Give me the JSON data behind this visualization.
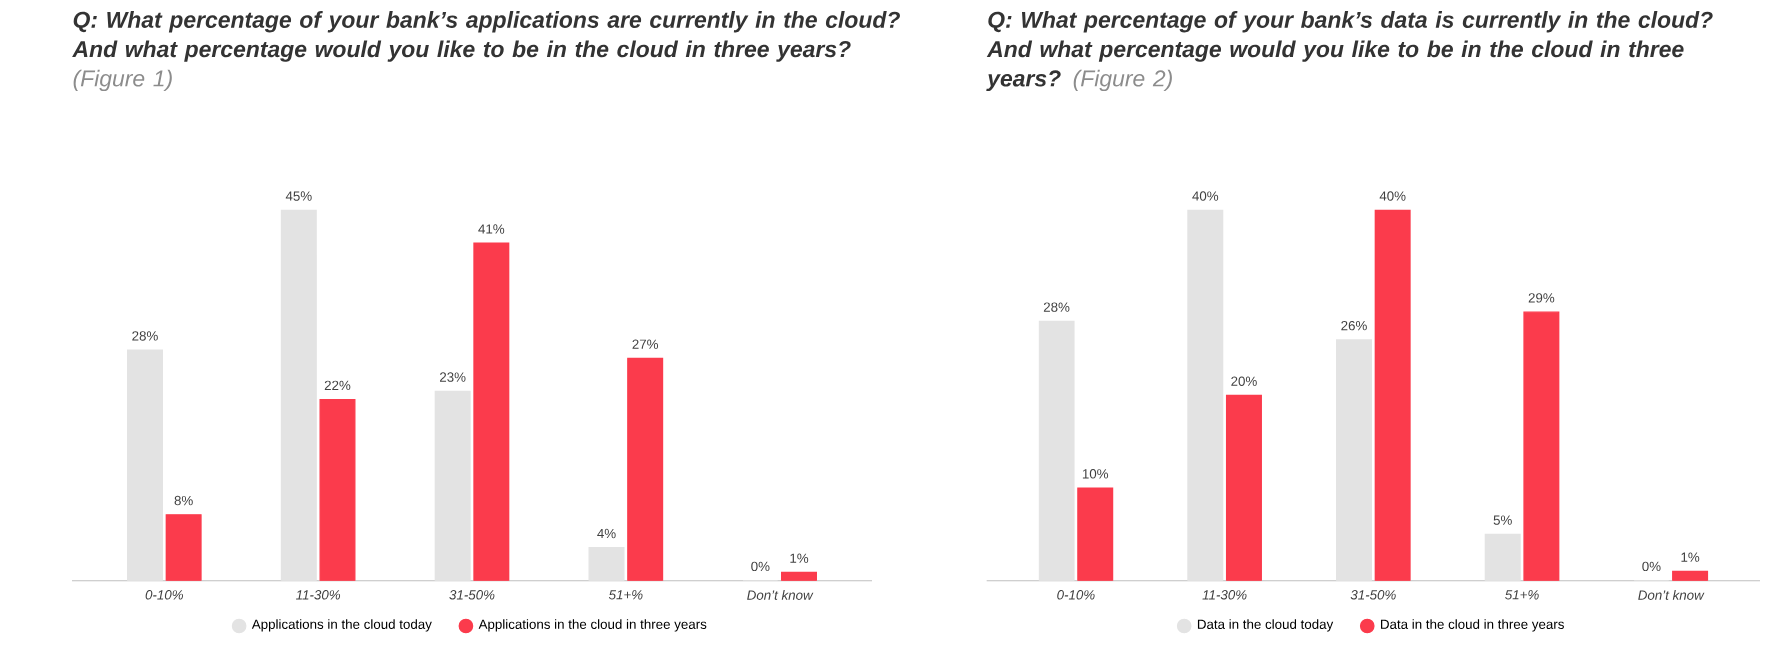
{
  "chart_data": [
    {
      "type": "bar",
      "title": "Q: What percentage of your bank’s applications are currently in the cloud? And what percentage would you like to be in the cloud in three years?",
      "subtitle": "(Figure 1)",
      "categories": [
        "0-10%",
        "11-30%",
        "31-50%",
        "51+%",
        "Don’t know"
      ],
      "series": [
        {
          "name": "Applications in the cloud today",
          "color": "#e3e3e3",
          "values": [
            28,
            45,
            23,
            4,
            0
          ],
          "value_labels": [
            "28%",
            "45%",
            "23%",
            "4%",
            "0%"
          ]
        },
        {
          "name": "Applications in the cloud in three years",
          "color": "#fb3b4c",
          "values": [
            8,
            22,
            41,
            27,
            1
          ],
          "value_labels": [
            "8%",
            "22%",
            "41%",
            "27%",
            "1%"
          ]
        }
      ],
      "legend": "bottom"
    },
    {
      "type": "bar",
      "title": "Q: What percentage of your bank’s data is currently in the cloud? And what percentage would you like to be in the cloud in three years?",
      "subtitle": "(Figure 2)",
      "categories": [
        "0-10%",
        "11-30%",
        "31-50%",
        "51+%",
        "Don’t know"
      ],
      "series": [
        {
          "name": "Data in the cloud today",
          "color": "#e3e3e3",
          "values": [
            28,
            40,
            26,
            5,
            0
          ],
          "value_labels": [
            "28%",
            "40%",
            "26%",
            "5%",
            "0%"
          ]
        },
        {
          "name": "Data in the cloud in three years",
          "color": "#fb3b4c",
          "values": [
            10,
            20,
            40,
            29,
            1
          ],
          "value_labels": [
            "10%",
            "20%",
            "40%",
            "29%",
            "1%"
          ]
        }
      ],
      "legend": "bottom"
    }
  ]
}
